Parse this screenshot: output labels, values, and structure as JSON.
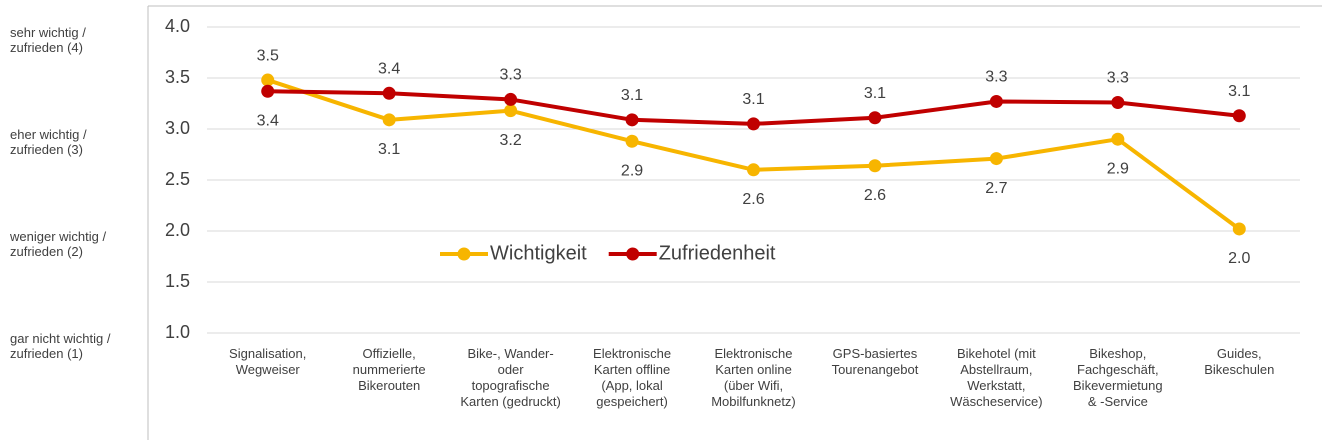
{
  "chart_data": {
    "type": "line",
    "row_labels": [
      "sehr wichtig /\nzufrieden (4)",
      "eher wichtig /\nzufrieden (3)",
      "weniger wichtig /\nzufrieden (2)",
      "gar nicht wichtig /\nzufrieden (1)"
    ],
    "categories": [
      "Signalisation,\nWegweiser",
      "Offizielle,\nnummerierte\nBikerouten",
      "Bike-, Wander-\noder\ntopografische\nKarten (gedruckt)",
      "Elektronische\nKarten offline\n(App, lokal\ngespeichert)",
      "Elektronische\nKarten online\n(über Wifi,\nMobilfunknetz)",
      "GPS-basiertes\nTourenangebot",
      "Bikehotel (mit\nAbstellraum,\nWerkstatt,\nWäscheservice)",
      "Bikeshop,\nFachgeschäft,\nBikevermietung\n& -Service",
      "Guides,\nBikeschulen"
    ],
    "series": [
      {
        "name": "Wichtigkeit",
        "color": "#f7b500",
        "values": [
          3.48,
          3.09,
          3.18,
          2.88,
          2.6,
          2.64,
          2.71,
          2.9,
          2.02
        ],
        "value_labels": [
          "3.5",
          "3.1",
          "3.2",
          "2.9",
          "2.6",
          "2.6",
          "2.7",
          "2.9",
          "2.0"
        ]
      },
      {
        "name": "Zufriedenheit",
        "color": "#c00000",
        "values": [
          3.37,
          3.35,
          3.29,
          3.09,
          3.05,
          3.11,
          3.27,
          3.26,
          3.13
        ],
        "value_labels": [
          "3.4",
          "3.4",
          "3.3",
          "3.1",
          "3.1",
          "3.1",
          "3.3",
          "3.3",
          "3.1"
        ]
      }
    ],
    "ylim": [
      1,
      4
    ],
    "yticks": [
      {
        "value": 1,
        "label": "1.0"
      },
      {
        "value": 1.5,
        "label": "1.5"
      },
      {
        "value": 2,
        "label": "2.0"
      },
      {
        "value": 2.5,
        "label": "2.5"
      },
      {
        "value": 3,
        "label": "3.0"
      },
      {
        "value": 3.5,
        "label": "3.5"
      },
      {
        "value": 4,
        "label": "4.0"
      }
    ],
    "grid": true
  }
}
